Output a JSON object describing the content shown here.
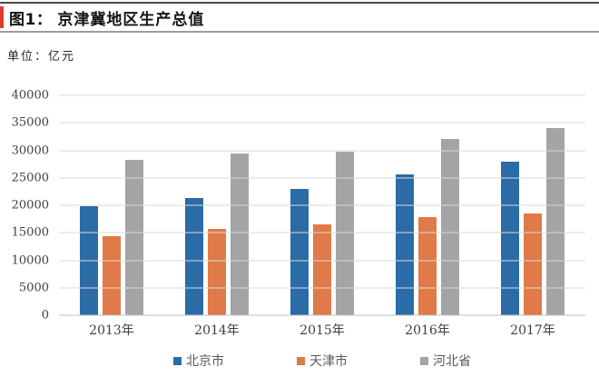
{
  "header": {
    "figure_label": "图1：",
    "title": "京津冀地区生产总值",
    "accent_color": "#e03c31"
  },
  "unit_label": "单位：亿元",
  "chart_data": {
    "type": "bar",
    "title": "京津冀地区生产总值",
    "unit": "亿元",
    "categories": [
      "2013年",
      "2014年",
      "2015年",
      "2016年",
      "2017年"
    ],
    "series": [
      {
        "name": "北京市",
        "color": "#2b6ba6",
        "values": [
          19800,
          21331,
          23015,
          25669,
          28000
        ]
      },
      {
        "name": "天津市",
        "color": "#e07a48",
        "values": [
          14370,
          15727,
          16538,
          17885,
          18595
        ]
      },
      {
        "name": "河北省",
        "color": "#a2a4a5",
        "values": [
          28301,
          29421,
          29806,
          32070,
          34016
        ]
      }
    ],
    "ylim": [
      0,
      40000
    ],
    "yticks": [
      0,
      5000,
      10000,
      15000,
      20000,
      25000,
      30000,
      35000,
      40000
    ],
    "grid": true,
    "legend_position": "bottom"
  }
}
